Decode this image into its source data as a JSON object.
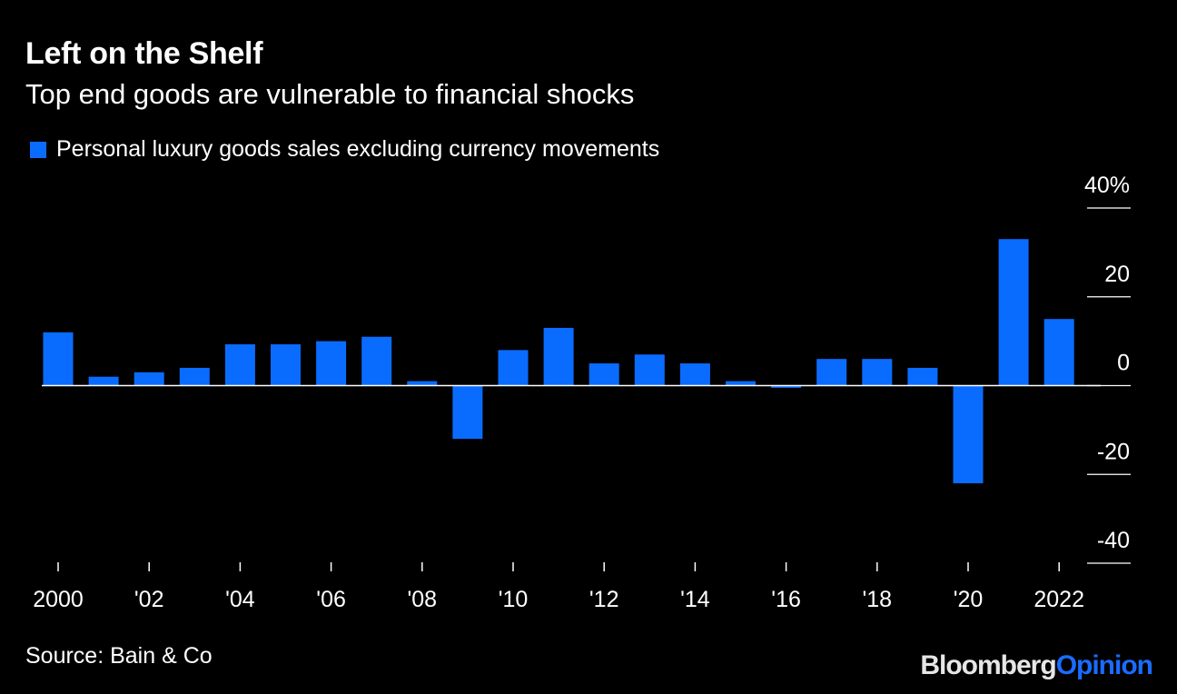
{
  "header": {
    "title": "Left on the Shelf",
    "subtitle": "Top end goods are vulnerable to financial shocks"
  },
  "legend": {
    "label": "Personal luxury goods sales excluding currency movements"
  },
  "footer": {
    "source": "Source: Bain & Co",
    "brand_part1": "Bloomberg",
    "brand_part2": "Opinion"
  },
  "colors": {
    "background": "#000000",
    "bar": "#0a6cff",
    "axis": "#ffffff",
    "text": "#ffffff"
  },
  "chart_data": {
    "type": "bar",
    "title": "Left on the Shelf",
    "subtitle": "Top end goods are vulnerable to financial shocks",
    "xlabel": "",
    "ylabel": "",
    "ylim": [
      -40,
      40
    ],
    "y_ticks": [
      {
        "value": 40,
        "label": "40%"
      },
      {
        "value": 20,
        "label": "20"
      },
      {
        "value": 0,
        "label": "0"
      },
      {
        "value": -20,
        "label": "-20"
      },
      {
        "value": -40,
        "label": "-40"
      }
    ],
    "categories": [
      "2000",
      "2001",
      "2002",
      "2003",
      "2004",
      "2005",
      "2006",
      "2007",
      "2008",
      "2009",
      "2010",
      "2011",
      "2012",
      "2013",
      "2014",
      "2015",
      "2016",
      "2017",
      "2018",
      "2019",
      "2020",
      "2021",
      "2022"
    ],
    "x_tick_labels": [
      "2000",
      "",
      "'02",
      "",
      "'04",
      "",
      "'06",
      "",
      "'08",
      "",
      "'10",
      "",
      "'12",
      "",
      "'14",
      "",
      "'16",
      "",
      "'18",
      "",
      "'20",
      "",
      "2022"
    ],
    "series": [
      {
        "name": "Personal luxury goods sales excluding currency movements",
        "values": [
          12,
          2,
          3,
          4,
          9.3,
          9.3,
          10,
          11,
          1,
          -12,
          8,
          13,
          5,
          7,
          5,
          1,
          -0.5,
          6,
          6,
          4,
          -22,
          33,
          15
        ]
      }
    ],
    "legend_position": "top-left",
    "grid": false
  }
}
